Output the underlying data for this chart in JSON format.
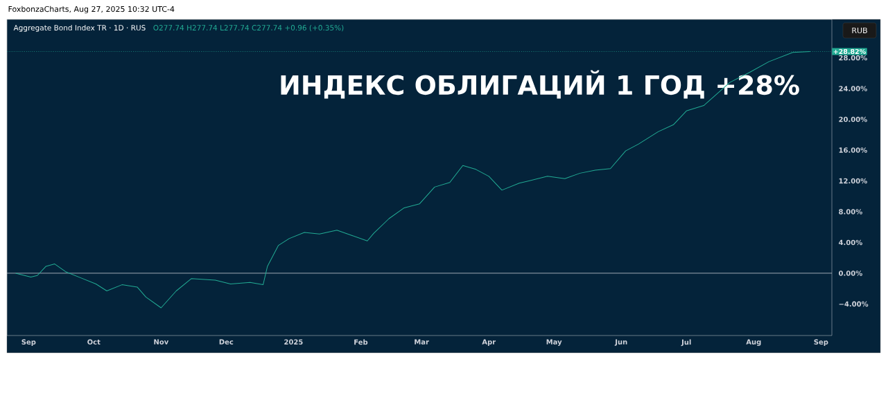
{
  "chart_data": {
    "type": "line",
    "title": "Aggregate Bond Index TR · 1D · RUS",
    "subtitle": "O277.74 H277.74 L277.74 C277.74 +0.96 (+0.35%)",
    "annotations": [
      "FoxbonzaCharts, Aug 27, 2025 10:32 UTC-4",
      "ИНДЕКС ОБЛИГАЦИЙ 1 ГОД +28%",
      "RUB"
    ],
    "x": [
      "2024-08-26",
      "2024-09-02",
      "2024-09-05",
      "2024-09-09",
      "2024-09-13",
      "2024-09-18",
      "2024-09-25",
      "2024-10-02",
      "2024-10-07",
      "2024-10-14",
      "2024-10-21",
      "2024-10-25",
      "2024-10-31",
      "2024-11-01",
      "2024-11-08",
      "2024-11-15",
      "2024-11-26",
      "2024-12-03",
      "2024-12-12",
      "2024-12-18",
      "2024-12-20",
      "2024-12-25",
      "2024-12-30",
      "2025-01-06",
      "2025-01-13",
      "2025-01-21",
      "2025-01-28",
      "2025-02-04",
      "2025-02-07",
      "2025-02-14",
      "2025-02-21",
      "2025-02-28",
      "2025-03-07",
      "2025-03-14",
      "2025-03-20",
      "2025-03-26",
      "2025-04-01",
      "2025-04-07",
      "2025-04-15",
      "2025-04-28",
      "2025-05-06",
      "2025-05-13",
      "2025-05-20",
      "2025-05-27",
      "2025-06-03",
      "2025-06-09",
      "2025-06-18",
      "2025-06-25",
      "2025-07-01",
      "2025-07-09",
      "2025-07-15",
      "2025-07-21",
      "2025-07-30",
      "2025-08-08",
      "2025-08-19",
      "2025-08-27"
    ],
    "series": [
      {
        "color": "#22ab94",
        "values": [
          0,
          -0.5,
          -0.3,
          0.9,
          1.2,
          0.2,
          -0.6,
          -1.4,
          -2.3,
          -1.5,
          -1.8,
          -3.1,
          -4.3,
          -4.5,
          -2.3,
          -0.7,
          -0.9,
          -1.4,
          -1.2,
          -1.5,
          0.9,
          3.6,
          4.5,
          5.3,
          5.1,
          5.6,
          4.9,
          4.2,
          5.2,
          7.1,
          8.5,
          9.0,
          11.2,
          11.8,
          14.0,
          13.5,
          12.6,
          10.8,
          11.7,
          12.6,
          12.3,
          13.0,
          13.4,
          13.6,
          15.9,
          16.8,
          18.4,
          19.3,
          21.1,
          21.8,
          23.3,
          24.8,
          26.1,
          27.5,
          28.7,
          28.82
        ]
      }
    ],
    "xlim": [
      "2024-08-22",
      "2025-09-06"
    ],
    "xticks": [
      {
        "value": "2024-09-01",
        "label": "Sep"
      },
      {
        "value": "2024-10-01",
        "label": "Oct"
      },
      {
        "value": "2024-11-01",
        "label": "Nov"
      },
      {
        "value": "2024-12-01",
        "label": "Dec"
      },
      {
        "value": "2025-01-01",
        "label": "2025"
      },
      {
        "value": "2025-02-01",
        "label": "Feb"
      },
      {
        "value": "2025-03-01",
        "label": "Mar"
      },
      {
        "value": "2025-04-01",
        "label": "Apr"
      },
      {
        "value": "2025-05-01",
        "label": "May"
      },
      {
        "value": "2025-06-01",
        "label": "Jun"
      },
      {
        "value": "2025-07-01",
        "label": "Jul"
      },
      {
        "value": "2025-08-01",
        "label": "Aug"
      },
      {
        "value": "2025-09-01",
        "label": "Sep"
      }
    ],
    "ylim": [
      -8.1,
      33
    ],
    "yticks": [
      {
        "value": -4,
        "label": "−4.00%"
      },
      {
        "value": 0,
        "label": "0.00%"
      },
      {
        "value": 4,
        "label": "4.00%"
      },
      {
        "value": 8,
        "label": "8.00%"
      },
      {
        "value": 12,
        "label": "12.00%"
      },
      {
        "value": 16,
        "label": "16.00%"
      },
      {
        "value": 20,
        "label": "20.00%"
      },
      {
        "value": 24,
        "label": "24.00%"
      },
      {
        "value": 28,
        "label": "28.00%"
      }
    ],
    "ref_lines": [
      {
        "axis": "y",
        "value": 0,
        "color": "#c8ccd4",
        "line_style": "solid"
      },
      {
        "axis": "y",
        "value": 28.82,
        "label": "+28.82%",
        "color": "#22ab94",
        "line_style": "dotted"
      }
    ],
    "grid": false
  }
}
